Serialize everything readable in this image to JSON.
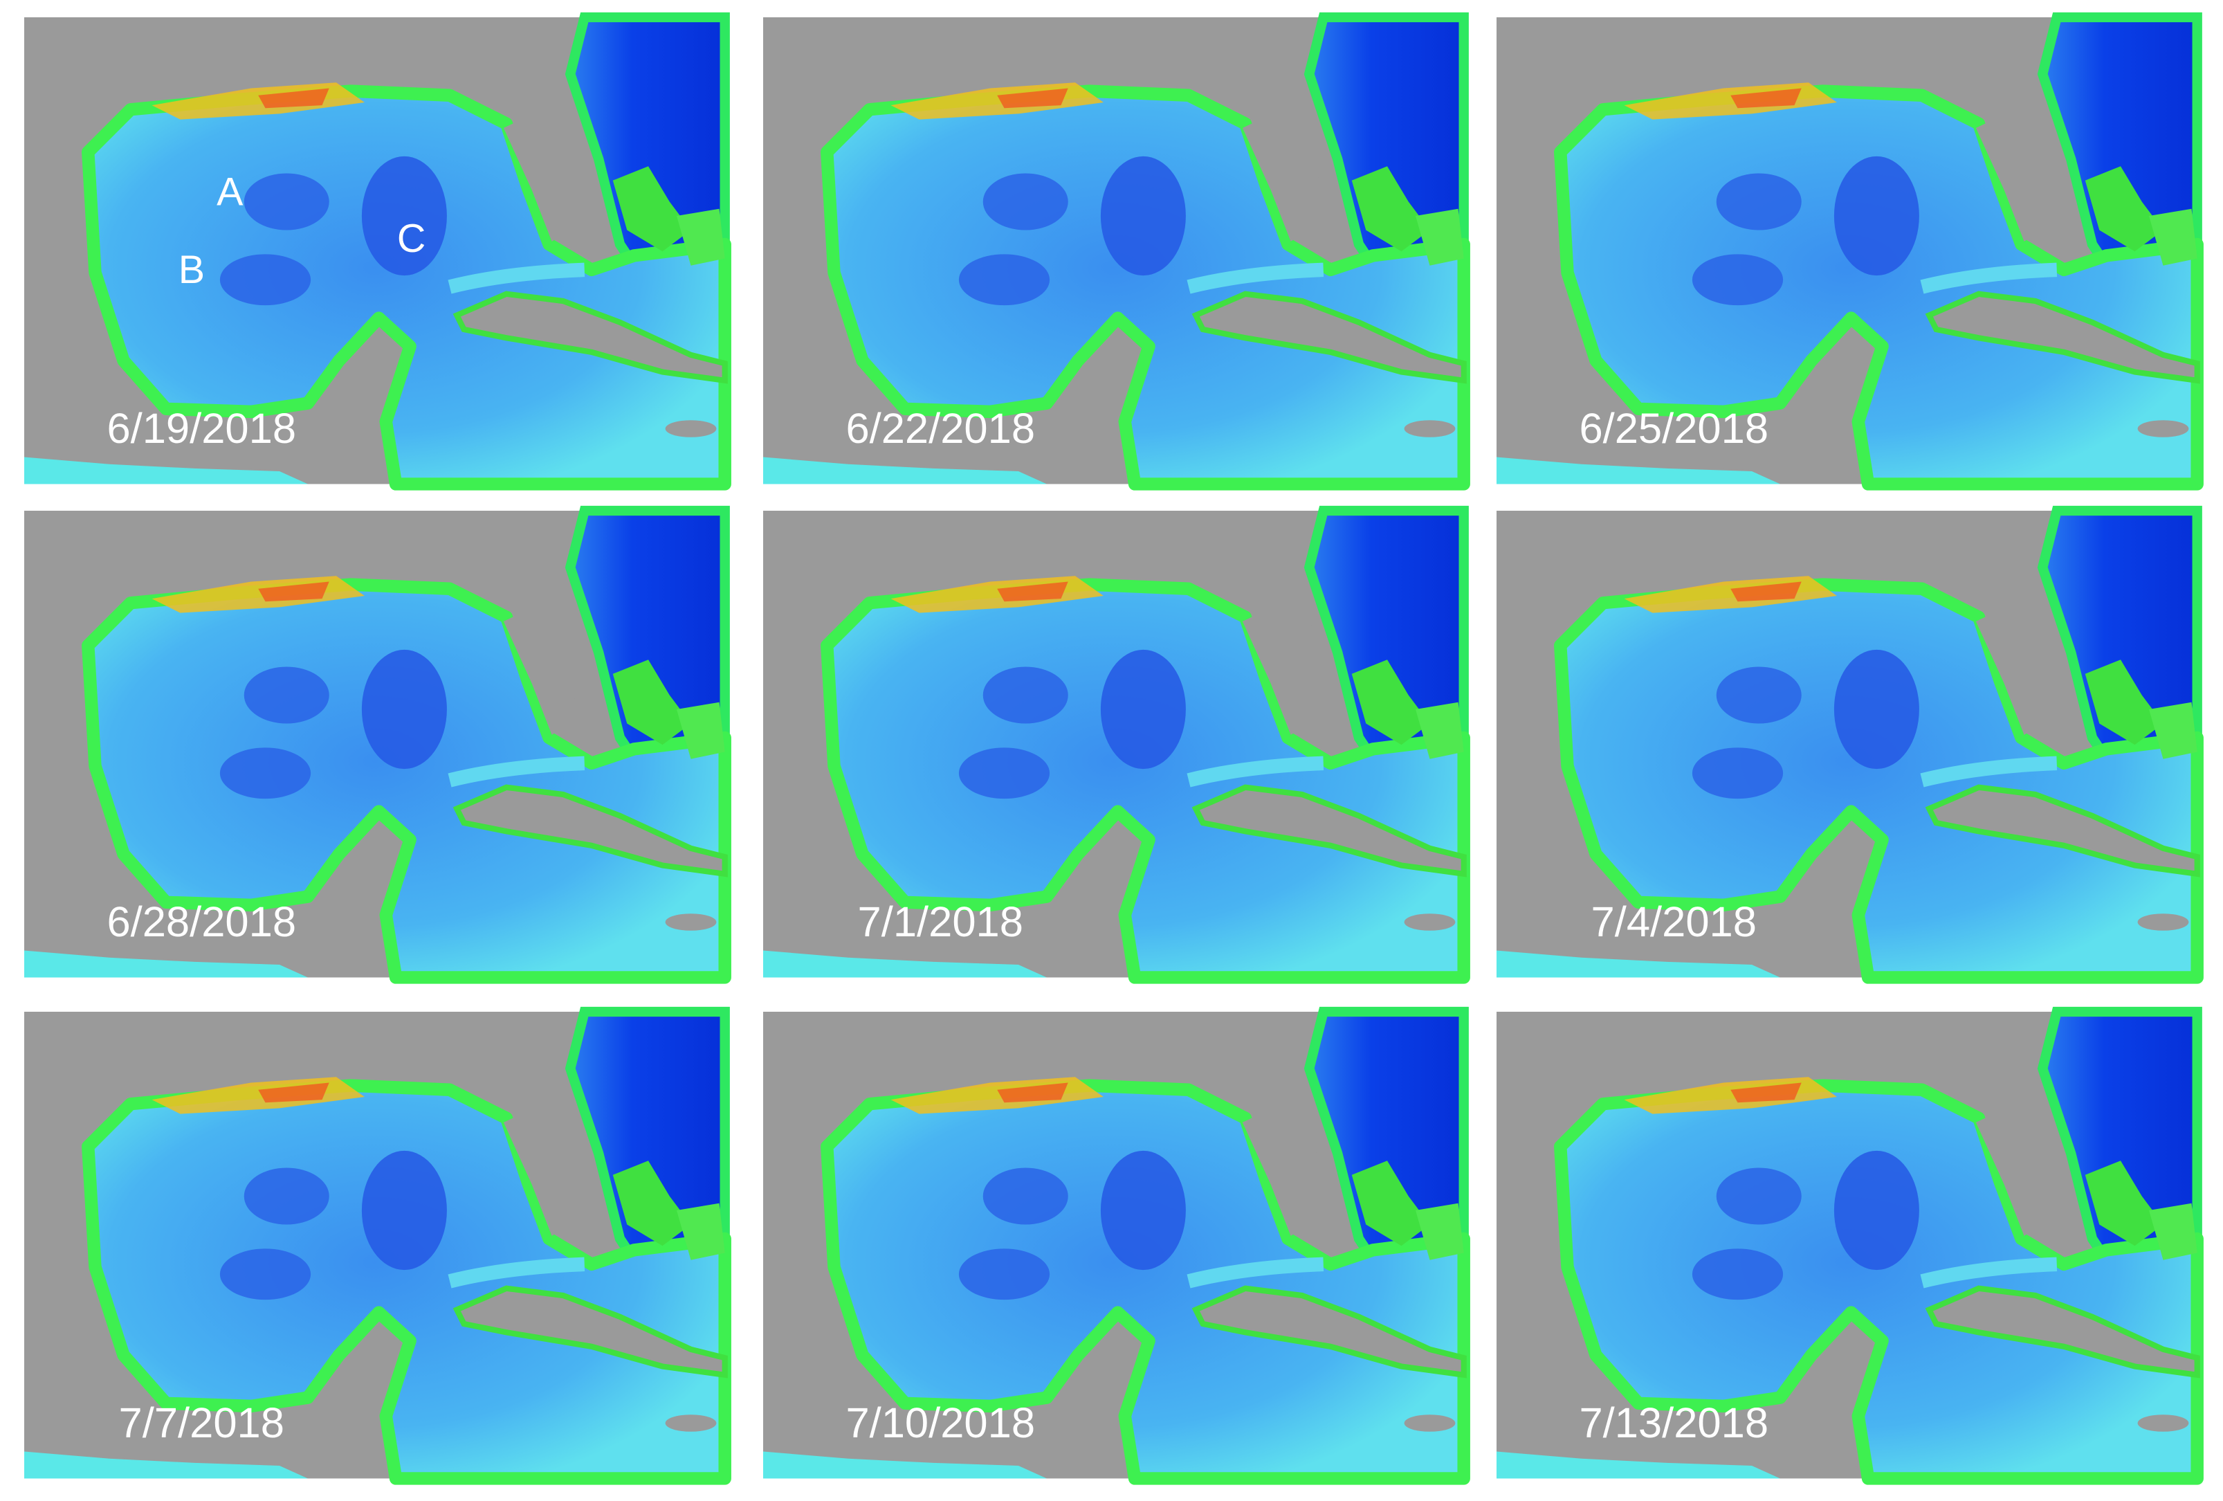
{
  "panels": [
    {
      "date": "6/19/2018",
      "annotations": [
        "A",
        "B",
        "C"
      ]
    },
    {
      "date": "6/22/2018"
    },
    {
      "date": "6/25/2018"
    },
    {
      "date": "6/28/2018"
    },
    {
      "date": "7/1/2018"
    },
    {
      "date": "7/4/2018"
    },
    {
      "date": "7/7/2018"
    },
    {
      "date": "7/10/2018"
    },
    {
      "date": "7/13/2018"
    }
  ]
}
